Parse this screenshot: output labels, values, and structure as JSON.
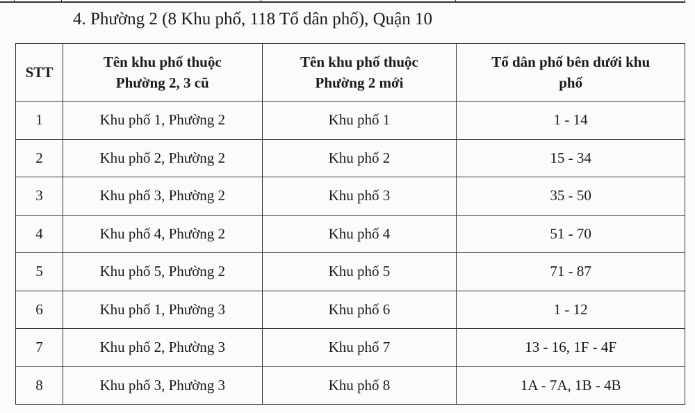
{
  "title": "4. Phường 2 (8 Khu phố, 118 Tổ dân phố), Quận 10",
  "table": {
    "headers": [
      "STT",
      "Tên khu phố thuộc Phường 2, 3 cũ",
      "Tên khu phố thuộc Phường 2 mới",
      "Tổ dân phố bên dưới khu phố"
    ],
    "rows": [
      [
        "1",
        "Khu phố 1, Phường 2",
        "Khu phố 1",
        "1 - 14"
      ],
      [
        "2",
        "Khu phố 2, Phường 2",
        "Khu phố 2",
        "15 - 34"
      ],
      [
        "3",
        "Khu phố 3, Phường 2",
        "Khu phố 3",
        "35 - 50"
      ],
      [
        "4",
        "Khu phố 4, Phường 2",
        "Khu phố 4",
        "51 - 70"
      ],
      [
        "5",
        "Khu phố 5, Phường 2",
        "Khu phố 5",
        "71 - 87"
      ],
      [
        "6",
        "Khu phố 1, Phường 3",
        "Khu phố 6",
        "1 - 12"
      ],
      [
        "7",
        "Khu phố 2, Phường 3",
        "Khu phố 7",
        "13 - 16, 1F - 4F"
      ],
      [
        "8",
        "Khu phố 3, Phường 3",
        "Khu phố 8",
        "1A - 7A, 1B - 4B"
      ]
    ]
  }
}
